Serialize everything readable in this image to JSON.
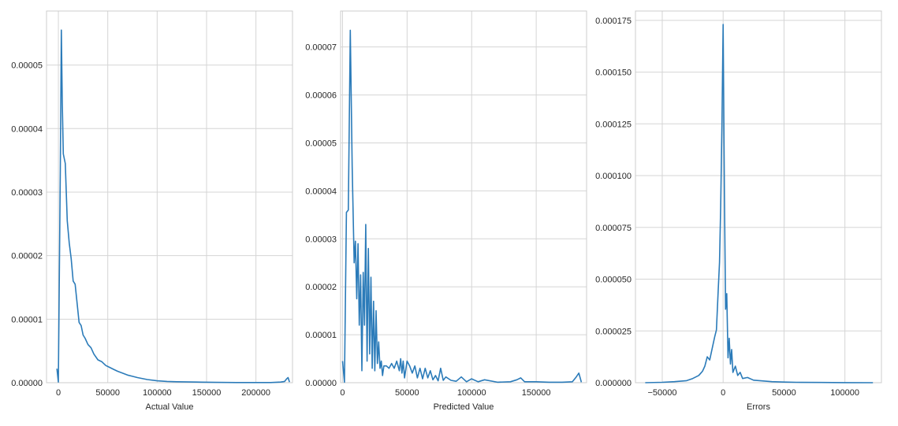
{
  "chart_data": [
    {
      "type": "line",
      "xlabel": "Actual Value",
      "ylabel": "",
      "xlim": [
        -12000,
        237000
      ],
      "ylim": [
        0,
        5.85e-05
      ],
      "grid": true,
      "xticks": [
        0,
        50000,
        100000,
        150000,
        200000
      ],
      "xtick_labels": [
        "0",
        "50000",
        "100000",
        "150000",
        "200000"
      ],
      "yticks": [
        0,
        1e-05,
        2e-05,
        3e-05,
        4e-05,
        5e-05
      ],
      "ytick_labels": [
        "0.00000",
        "0.00001",
        "0.00002",
        "0.00003",
        "0.00004",
        "0.00005"
      ],
      "color": "#2b7bb9",
      "series": [
        {
          "x": [
            -1500,
            0,
            2000,
            3000,
            4000,
            5000,
            7000,
            9000,
            11000,
            13000,
            15000,
            17000,
            19000,
            21000,
            23000,
            25000,
            27000,
            30000,
            33000,
            36000,
            40000,
            44000,
            48000,
            52000,
            56000,
            60000,
            65000,
            70000,
            75000,
            80000,
            90000,
            100000,
            110000,
            120000,
            140000,
            160000,
            180000,
            200000,
            215000,
            225000,
            229000,
            231000,
            232500,
            234000
          ],
          "y": [
            2.2e-06,
            1e-07,
            3.35e-05,
            5.55e-05,
            4.4e-05,
            3.6e-05,
            3.45e-05,
            2.55e-05,
            2.2e-05,
            1.95e-05,
            1.6e-05,
            1.55e-05,
            1.25e-05,
            9.5e-06,
            9e-06,
            7.5e-06,
            7e-06,
            6e-06,
            5.5e-06,
            4.5e-06,
            3.6e-06,
            3.3e-06,
            2.7e-06,
            2.4e-06,
            2.1e-06,
            1.8e-06,
            1.5e-06,
            1.2e-06,
            1e-06,
            8e-07,
            5e-07,
            3e-07,
            2e-07,
            1.5e-07,
            1e-07,
            5e-08,
            3e-08,
            2e-08,
            2e-08,
            1e-07,
            2e-07,
            6e-07,
            8e-07,
            1e-07
          ]
        }
      ]
    },
    {
      "type": "line",
      "xlabel": "Predicted Value",
      "ylabel": "",
      "xlim": [
        -1500,
        189000
      ],
      "ylim": [
        0,
        7.75e-05
      ],
      "grid": true,
      "xticks": [
        0,
        50000,
        100000,
        150000
      ],
      "xtick_labels": [
        "0",
        "50000",
        "100000",
        "150000"
      ],
      "yticks": [
        0,
        1e-05,
        2e-05,
        3e-05,
        4e-05,
        5e-05,
        6e-05,
        7e-05
      ],
      "ytick_labels": [
        "0.00000",
        "0.00001",
        "0.00002",
        "0.00003",
        "0.00004",
        "0.00005",
        "0.00006",
        "0.00007"
      ],
      "color": "#2b7bb9",
      "series": [
        {
          "x": [
            0,
            1500,
            3000,
            4500,
            6000,
            7500,
            9000,
            10000,
            11000,
            12000,
            13000,
            14000,
            15000,
            16000,
            17000,
            18000,
            19000,
            20000,
            21000,
            22000,
            23000,
            24000,
            25000,
            26000,
            27000,
            28000,
            29000,
            30000,
            31000,
            32000,
            34000,
            36000,
            38000,
            40000,
            42000,
            44000,
            45000,
            46000,
            47000,
            48000,
            50000,
            52000,
            54000,
            56000,
            58000,
            60000,
            62000,
            64000,
            66000,
            68000,
            70000,
            72000,
            74000,
            76000,
            78000,
            80000,
            84000,
            88000,
            92000,
            96000,
            100000,
            105000,
            110000,
            120000,
            130000,
            135000,
            138000,
            141000,
            150000,
            160000,
            170000,
            178000,
            181000,
            183000,
            185000
          ],
          "y": [
            4.5e-06,
            1e-07,
            3.55e-05,
            3.6e-05,
            7.35e-05,
            4.5e-05,
            2.5e-05,
            2.95e-05,
            1.75e-05,
            2.9e-05,
            1.2e-05,
            2.25e-05,
            2.5e-06,
            2.3e-05,
            1.2e-05,
            3.3e-05,
            4.5e-06,
            2.8e-05,
            6e-06,
            2.2e-05,
            3e-06,
            1.7e-05,
            2.5e-06,
            1.5e-05,
            4e-06,
            8.5e-06,
            3e-06,
            4.5e-06,
            1.5e-06,
            3.5e-06,
            3.5e-06,
            3e-06,
            4e-06,
            3e-06,
            4.5e-06,
            2.5e-06,
            5e-06,
            2e-06,
            4.5e-06,
            1e-06,
            4.5e-06,
            3.5e-06,
            2e-06,
            3.5e-06,
            1e-06,
            3e-06,
            8e-07,
            3e-06,
            1e-06,
            2.5e-06,
            6e-07,
            1.5e-06,
            4e-07,
            3e-06,
            5e-07,
            1.2e-06,
            5e-07,
            3e-07,
            1.2e-06,
            2e-07,
            8e-07,
            2e-07,
            6e-07,
            1e-07,
            2e-07,
            6e-07,
            1e-06,
            2e-07,
            2e-07,
            1e-07,
            1e-07,
            2e-07,
            1.2e-06,
            2e-06,
            1e-07
          ]
        }
      ]
    },
    {
      "type": "line",
      "xlabel": "Errors",
      "ylabel": "",
      "xlim": [
        -72000,
        130000
      ],
      "ylim": [
        0,
        0.0001795
      ],
      "grid": true,
      "xticks": [
        -50000,
        0,
        50000,
        100000
      ],
      "xtick_labels": [
        "−50000",
        "0",
        "50000",
        "100000"
      ],
      "yticks": [
        0,
        2.5e-05,
        5e-05,
        7.5e-05,
        0.0001,
        0.000125,
        0.00015,
        0.000175
      ],
      "ytick_labels": [
        "0.000000",
        "0.000025",
        "0.000050",
        "0.000075",
        "0.000100",
        "0.000125",
        "0.000150",
        "0.000175"
      ],
      "color": "#2b7bb9",
      "series": [
        {
          "x": [
            -64000,
            -50000,
            -40000,
            -30000,
            -25000,
            -20000,
            -17000,
            -15000,
            -13000,
            -11000,
            -9000,
            -7000,
            -5500,
            -4000,
            -3000,
            -2000,
            -1000,
            0,
            1000,
            2000,
            3000,
            4000,
            5000,
            6000,
            7000,
            8000,
            10000,
            12000,
            14000,
            16000,
            20000,
            25000,
            30000,
            40000,
            50000,
            60000,
            80000,
            100000,
            123000
          ],
          "y": [
            0,
            2e-07,
            5e-07,
            1e-06,
            2e-06,
            3.5e-06,
            5.5e-06,
            8e-06,
            1.25e-05,
            1.1e-05,
            1.65e-05,
            2.2e-05,
            2.55e-05,
            4.5e-05,
            5.8e-05,
            8.5e-05,
            0.000125,
            0.000173,
            9.25e-05,
            3.55e-05,
            4.3e-05,
            1.2e-05,
            2.15e-05,
            9e-06,
            1.6e-05,
            5e-06,
            8e-06,
            3.5e-06,
            5e-06,
            2e-06,
            2.5e-06,
            1.2e-06,
            1e-06,
            5e-07,
            3e-07,
            2e-07,
            1e-07,
            5e-08,
            0
          ]
        }
      ]
    }
  ]
}
